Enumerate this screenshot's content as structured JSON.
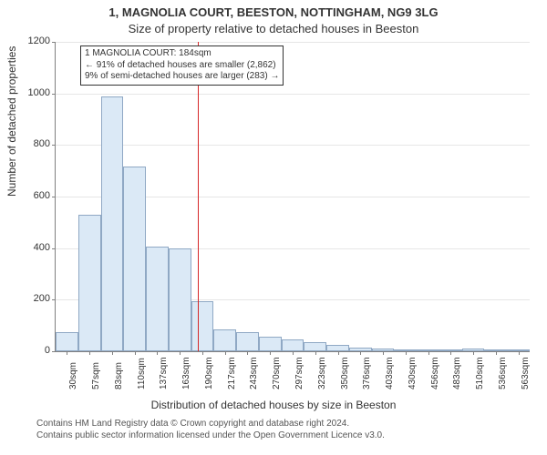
{
  "title": "1, MAGNOLIA COURT, BEESTON, NOTTINGHAM, NG9 3LG",
  "subtitle": "Size of property relative to detached houses in Beeston",
  "ylabel": "Number of detached properties",
  "xlabel": "Distribution of detached houses by size in Beeston",
  "chart": {
    "type": "histogram",
    "bar_fill": "#dbe9f6",
    "bar_stroke": "#8fa8c4",
    "grid_color": "#e6e6e6",
    "axis_color": "#808080",
    "marker_color": "#d62728",
    "background": "#ffffff",
    "xlim": [
      16,
      576
    ],
    "ylim": [
      0,
      1200
    ],
    "ytick_step": 200,
    "x_categories": [
      "30sqm",
      "57sqm",
      "83sqm",
      "110sqm",
      "137sqm",
      "163sqm",
      "190sqm",
      "217sqm",
      "243sqm",
      "270sqm",
      "297sqm",
      "323sqm",
      "350sqm",
      "376sqm",
      "403sqm",
      "430sqm",
      "456sqm",
      "483sqm",
      "510sqm",
      "536sqm",
      "563sqm"
    ],
    "values": [
      75,
      530,
      990,
      715,
      405,
      400,
      195,
      85,
      75,
      55,
      45,
      35,
      25,
      15,
      10,
      5,
      5,
      5,
      10,
      5,
      5
    ],
    "marker_x": 184,
    "title_fontsize": 13,
    "label_fontsize": 12,
    "tick_fontsize": 11,
    "xtick_fontsize": 10
  },
  "annotation": {
    "line1": "1 MAGNOLIA COURT: 184sqm",
    "line2": "← 91% of detached houses are smaller (2,862)",
    "line3": "9% of semi-detached houses are larger (283) →"
  },
  "credits": {
    "line1": "Contains HM Land Registry data © Crown copyright and database right 2024.",
    "line2": "Contains public sector information licensed under the Open Government Licence v3.0."
  },
  "yticks": [
    "0",
    "200",
    "400",
    "600",
    "800",
    "1000",
    "1200"
  ]
}
